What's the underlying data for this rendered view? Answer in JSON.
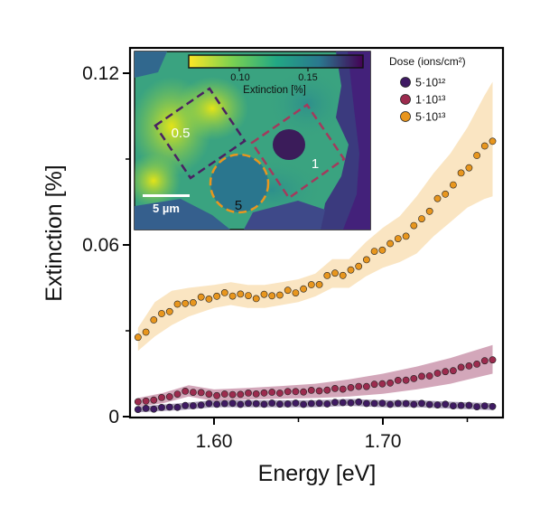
{
  "chart_data": {
    "type": "scatter",
    "xlabel": "Energy [eV]",
    "ylabel": "Extinction [%]",
    "xlim": [
      1.552,
      1.768
    ],
    "ylim": [
      0,
      0.13
    ],
    "x_ticks": [
      1.6,
      1.7
    ],
    "x_tick_labels": [
      "1.60",
      "1.70"
    ],
    "y_ticks": [
      0,
      0.06,
      0.12
    ],
    "y_tick_labels": [
      "0",
      "0.06",
      "0.12"
    ],
    "grid": false,
    "legend": {
      "title": "Dose (ions/cm²)",
      "position": "top-right",
      "entries": [
        "5·10¹²",
        "1·10¹³",
        "5·10¹³"
      ]
    },
    "series": [
      {
        "name": "5·10¹²",
        "color": "#3f1a63",
        "band_color": "#8e7aa6",
        "x": [
          1.555,
          1.58,
          1.6,
          1.62,
          1.64,
          1.66,
          1.68,
          1.7,
          1.72,
          1.74,
          1.765
        ],
        "y": [
          0.0025,
          0.0035,
          0.0045,
          0.0045,
          0.0045,
          0.0045,
          0.005,
          0.0045,
          0.0045,
          0.004,
          0.0035
        ],
        "band": [
          0.001,
          0.0012,
          0.0012,
          0.0012,
          0.0012,
          0.0012,
          0.0012,
          0.0012,
          0.0012,
          0.0012,
          0.0012
        ]
      },
      {
        "name": "1·10¹³",
        "color": "#9c2b4e",
        "band_color": "#c489a3",
        "x": [
          1.555,
          1.57,
          1.585,
          1.6,
          1.62,
          1.64,
          1.66,
          1.68,
          1.7,
          1.72,
          1.74,
          1.765
        ],
        "y": [
          0.005,
          0.0065,
          0.009,
          0.0075,
          0.008,
          0.0085,
          0.009,
          0.01,
          0.0115,
          0.0135,
          0.016,
          0.02
        ],
        "band": [
          0.0015,
          0.0018,
          0.002,
          0.002,
          0.002,
          0.0022,
          0.0025,
          0.003,
          0.0035,
          0.004,
          0.0045,
          0.005
        ]
      },
      {
        "name": "5·10¹³",
        "color": "#e8961e",
        "band_color": "#f8dcae",
        "x": [
          1.555,
          1.565,
          1.575,
          1.585,
          1.6,
          1.61,
          1.62,
          1.63,
          1.64,
          1.65,
          1.66,
          1.67,
          1.68,
          1.69,
          1.7,
          1.71,
          1.72,
          1.73,
          1.74,
          1.75,
          1.76,
          1.765
        ],
        "y": [
          0.027,
          0.034,
          0.038,
          0.04,
          0.042,
          0.043,
          0.042,
          0.042,
          0.043,
          0.044,
          0.046,
          0.05,
          0.05,
          0.055,
          0.059,
          0.062,
          0.067,
          0.074,
          0.08,
          0.087,
          0.094,
          0.097
        ],
        "band": [
          0.004,
          0.006,
          0.006,
          0.005,
          0.004,
          0.004,
          0.004,
          0.004,
          0.004,
          0.004,
          0.004,
          0.005,
          0.005,
          0.006,
          0.007,
          0.008,
          0.01,
          0.011,
          0.012,
          0.014,
          0.018,
          0.02
        ]
      }
    ]
  },
  "inset": {
    "colorbar_ticks": [
      "0.10",
      "0.15"
    ],
    "colorbar_label": "Extinction [%]",
    "scalebar_label": "5 µm",
    "region_labels": {
      "dose_low": "0.5",
      "dose_mid": "1",
      "dose_high": "5"
    }
  }
}
